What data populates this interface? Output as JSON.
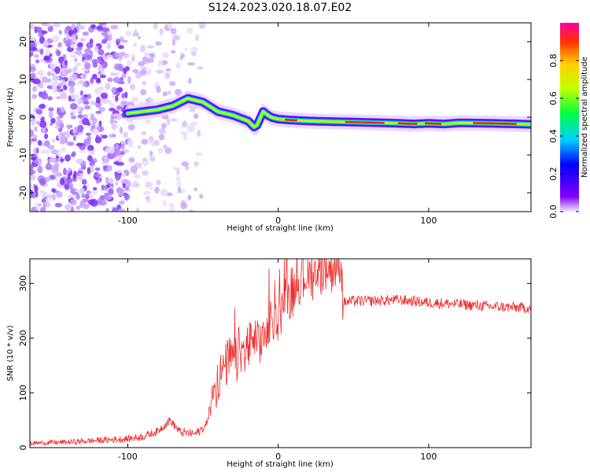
{
  "title": "S124.2023.020.18.07.E02",
  "chart_data": [
    {
      "type": "heatmap",
      "xlabel": "Height of straight line (km)",
      "ylabel": "Frequency (Hz)",
      "xlim": [
        -165,
        168
      ],
      "ylim": [
        -25,
        25
      ],
      "xticks": [
        -100,
        0,
        100
      ],
      "yticks": [
        -20,
        -10,
        0,
        10,
        20
      ],
      "colorbar": {
        "label": "Normalized spectral amplitude",
        "range": [
          0,
          1
        ],
        "ticks": [
          0.0,
          0.2,
          0.4,
          0.6,
          0.8
        ]
      },
      "ridge": {
        "x": [
          -100,
          -90,
          -80,
          -70,
          -60,
          -50,
          -40,
          -30,
          -20,
          -15,
          -10,
          -5,
          0,
          10,
          20,
          40,
          60,
          80,
          90,
          100,
          110,
          120,
          140,
          160,
          168
        ],
        "freq": [
          1,
          1.5,
          2,
          3,
          5,
          4,
          1.5,
          0.5,
          -1,
          -3,
          1.5,
          0,
          -0.5,
          -0.8,
          -1.0,
          -1.2,
          -1.4,
          -1.6,
          -1.8,
          -1.6,
          -1.8,
          -1.5,
          -1.6,
          -1.8,
          -1.9
        ]
      }
    },
    {
      "type": "line",
      "xlabel": "Height of straight line (km)",
      "ylabel": "SNR (10 * v/v)",
      "xlim": [
        -165,
        168
      ],
      "ylim": [
        0,
        345
      ],
      "xticks": [
        -100,
        0,
        100
      ],
      "yticks": [
        0,
        100,
        200,
        300
      ],
      "color": "#ee2c2c",
      "series": [
        {
          "x": [
            -165,
            -140,
            -120,
            -100,
            -90,
            -80,
            -72,
            -65,
            -55,
            -48,
            -44,
            -40,
            -35,
            -30,
            -25,
            -20,
            -15,
            -10,
            -5,
            0,
            5,
            10,
            15,
            20,
            25,
            30,
            35,
            40,
            42,
            43,
            50,
            60,
            80,
            100,
            120,
            140,
            168
          ],
          "values": [
            8,
            10,
            13,
            16,
            20,
            30,
            50,
            28,
            25,
            40,
            90,
            130,
            150,
            165,
            175,
            185,
            190,
            200,
            215,
            245,
            270,
            290,
            305,
            315,
            320,
            325,
            328,
            330,
            332,
            265,
            268,
            268,
            270,
            265,
            262,
            258,
            255
          ]
        }
      ]
    }
  ]
}
